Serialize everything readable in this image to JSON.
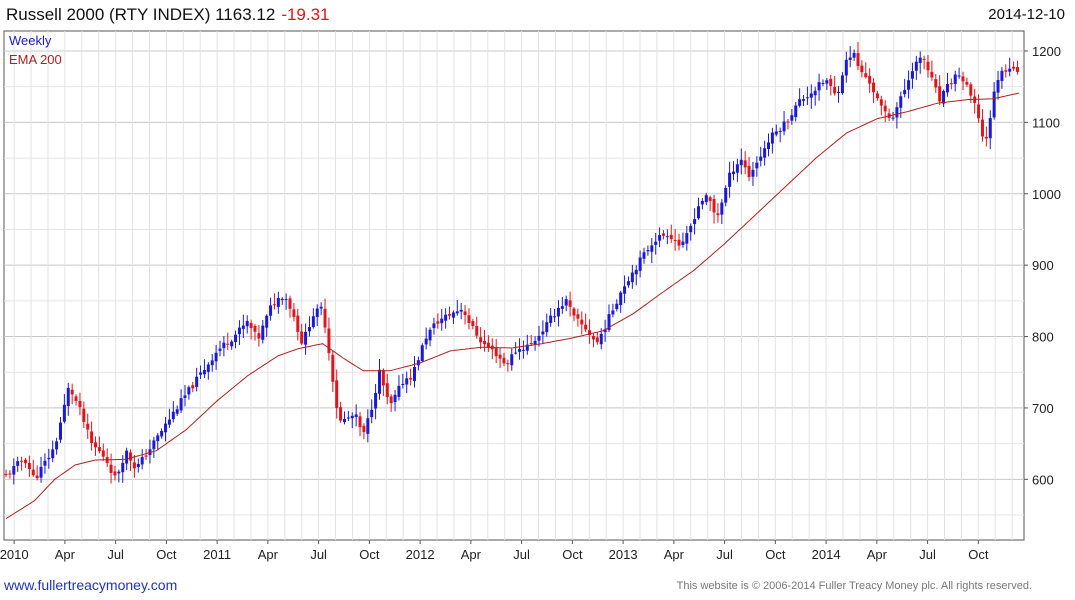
{
  "header": {
    "title": "Russell 2000 (RTY INDEX) 1163.12",
    "change": "-19.31",
    "change_color": "#e0151b",
    "date": "2014-12-10"
  },
  "footer": {
    "link": "www.fullertreacymoney.com",
    "copyright": "This website is © 2006-2014 Fuller Treacy Money plc. All rights reserved."
  },
  "chart_data": {
    "type": "candlestick",
    "title": "Russell 2000 (RTY INDEX) 1163.12 -19.31",
    "period": "Weekly",
    "legend": [
      {
        "label": "Weekly",
        "color": "#1a1ad6"
      },
      {
        "label": "EMA 200",
        "color": "#b02020"
      }
    ],
    "legend_position": "top-left",
    "ylim": [
      515,
      1228
    ],
    "yticks": [
      600,
      700,
      800,
      900,
      1000,
      1100,
      1200
    ],
    "y_axis_side": "right",
    "xlim": [
      2009.95,
      2014.975
    ],
    "xticks": [
      {
        "label": "2010",
        "x": 2010.0
      },
      {
        "label": "Apr",
        "x": 2010.25
      },
      {
        "label": "Jul",
        "x": 2010.5
      },
      {
        "label": "Oct",
        "x": 2010.75
      },
      {
        "label": "2011",
        "x": 2011.0
      },
      {
        "label": "Apr",
        "x": 2011.25
      },
      {
        "label": "Jul",
        "x": 2011.5
      },
      {
        "label": "Oct",
        "x": 2011.75
      },
      {
        "label": "2012",
        "x": 2012.0
      },
      {
        "label": "Apr",
        "x": 2012.25
      },
      {
        "label": "Jul",
        "x": 2012.5
      },
      {
        "label": "Oct",
        "x": 2012.75
      },
      {
        "label": "2013",
        "x": 2013.0
      },
      {
        "label": "Apr",
        "x": 2013.25
      },
      {
        "label": "Jul",
        "x": 2013.5
      },
      {
        "label": "Oct",
        "x": 2013.75
      },
      {
        "label": "2014",
        "x": 2014.0
      },
      {
        "label": "Apr",
        "x": 2014.25
      },
      {
        "label": "Jul",
        "x": 2014.5
      },
      {
        "label": "Oct",
        "x": 2014.75
      }
    ],
    "grid": true,
    "up_color": "#1a1ad6",
    "down_color": "#e0151b",
    "ema_color": "#b02020",
    "close_anchors": [
      [
        2009.96,
        605
      ],
      [
        2010.05,
        630
      ],
      [
        2010.1,
        600
      ],
      [
        2010.2,
        645
      ],
      [
        2010.27,
        730
      ],
      [
        2010.32,
        700
      ],
      [
        2010.38,
        650
      ],
      [
        2010.45,
        630
      ],
      [
        2010.5,
        600
      ],
      [
        2010.55,
        640
      ],
      [
        2010.6,
        615
      ],
      [
        2010.65,
        635
      ],
      [
        2010.72,
        665
      ],
      [
        2010.8,
        700
      ],
      [
        2010.9,
        740
      ],
      [
        2011.0,
        780
      ],
      [
        2011.08,
        800
      ],
      [
        2011.15,
        820
      ],
      [
        2011.2,
        795
      ],
      [
        2011.27,
        845
      ],
      [
        2011.33,
        860
      ],
      [
        2011.37,
        835
      ],
      [
        2011.42,
        790
      ],
      [
        2011.47,
        830
      ],
      [
        2011.52,
        840
      ],
      [
        2011.56,
        760
      ],
      [
        2011.6,
        680
      ],
      [
        2011.68,
        690
      ],
      [
        2011.72,
        660
      ],
      [
        2011.76,
        700
      ],
      [
        2011.8,
        750
      ],
      [
        2011.85,
        700
      ],
      [
        2011.92,
        740
      ],
      [
        2011.96,
        745
      ],
      [
        2012.03,
        800
      ],
      [
        2012.08,
        820
      ],
      [
        2012.14,
        830
      ],
      [
        2012.21,
        840
      ],
      [
        2012.25,
        815
      ],
      [
        2012.31,
        790
      ],
      [
        2012.38,
        775
      ],
      [
        2012.42,
        760
      ],
      [
        2012.47,
        780
      ],
      [
        2012.55,
        790
      ],
      [
        2012.62,
        815
      ],
      [
        2012.68,
        840
      ],
      [
        2012.72,
        850
      ],
      [
        2012.76,
        825
      ],
      [
        2012.82,
        810
      ],
      [
        2012.87,
        790
      ],
      [
        2012.92,
        820
      ],
      [
        2013.0,
        870
      ],
      [
        2013.08,
        905
      ],
      [
        2013.15,
        935
      ],
      [
        2013.22,
        945
      ],
      [
        2013.29,
        925
      ],
      [
        2013.32,
        945
      ],
      [
        2013.38,
        990
      ],
      [
        2013.42,
        995
      ],
      [
        2013.46,
        965
      ],
      [
        2013.53,
        1030
      ],
      [
        2013.58,
        1050
      ],
      [
        2013.62,
        1025
      ],
      [
        2013.68,
        1055
      ],
      [
        2013.73,
        1080
      ],
      [
        2013.8,
        1100
      ],
      [
        2013.87,
        1130
      ],
      [
        2013.94,
        1145
      ],
      [
        2014.0,
        1160
      ],
      [
        2014.05,
        1135
      ],
      [
        2014.09,
        1180
      ],
      [
        2014.13,
        1200
      ],
      [
        2014.17,
        1170
      ],
      [
        2014.21,
        1160
      ],
      [
        2014.27,
        1120
      ],
      [
        2014.32,
        1105
      ],
      [
        2014.38,
        1140
      ],
      [
        2014.43,
        1180
      ],
      [
        2014.48,
        1190
      ],
      [
        2014.52,
        1160
      ],
      [
        2014.56,
        1130
      ],
      [
        2014.6,
        1150
      ],
      [
        2014.65,
        1170
      ],
      [
        2014.7,
        1145
      ],
      [
        2014.75,
        1110
      ],
      [
        2014.78,
        1065
      ],
      [
        2014.81,
        1110
      ],
      [
        2014.84,
        1160
      ],
      [
        2014.88,
        1175
      ],
      [
        2014.92,
        1180
      ],
      [
        2014.95,
        1163
      ]
    ],
    "ema_anchors": [
      [
        2009.96,
        545
      ],
      [
        2010.1,
        570
      ],
      [
        2010.2,
        600
      ],
      [
        2010.3,
        620
      ],
      [
        2010.4,
        627
      ],
      [
        2010.55,
        628
      ],
      [
        2010.7,
        640
      ],
      [
        2010.85,
        670
      ],
      [
        2011.0,
        710
      ],
      [
        2011.15,
        745
      ],
      [
        2011.3,
        773
      ],
      [
        2011.4,
        783
      ],
      [
        2011.52,
        790
      ],
      [
        2011.62,
        770
      ],
      [
        2011.72,
        752
      ],
      [
        2011.85,
        752
      ],
      [
        2012.0,
        763
      ],
      [
        2012.15,
        780
      ],
      [
        2012.3,
        785
      ],
      [
        2012.45,
        784
      ],
      [
        2012.6,
        790
      ],
      [
        2012.75,
        798
      ],
      [
        2012.9,
        808
      ],
      [
        2013.05,
        832
      ],
      [
        2013.2,
        863
      ],
      [
        2013.35,
        893
      ],
      [
        2013.5,
        930
      ],
      [
        2013.65,
        970
      ],
      [
        2013.8,
        1010
      ],
      [
        2013.95,
        1050
      ],
      [
        2014.1,
        1085
      ],
      [
        2014.25,
        1105
      ],
      [
        2014.4,
        1115
      ],
      [
        2014.55,
        1127
      ],
      [
        2014.7,
        1132
      ],
      [
        2014.82,
        1133
      ],
      [
        2014.95,
        1141
      ]
    ],
    "last_close": 1163.12,
    "change": -19.31
  }
}
